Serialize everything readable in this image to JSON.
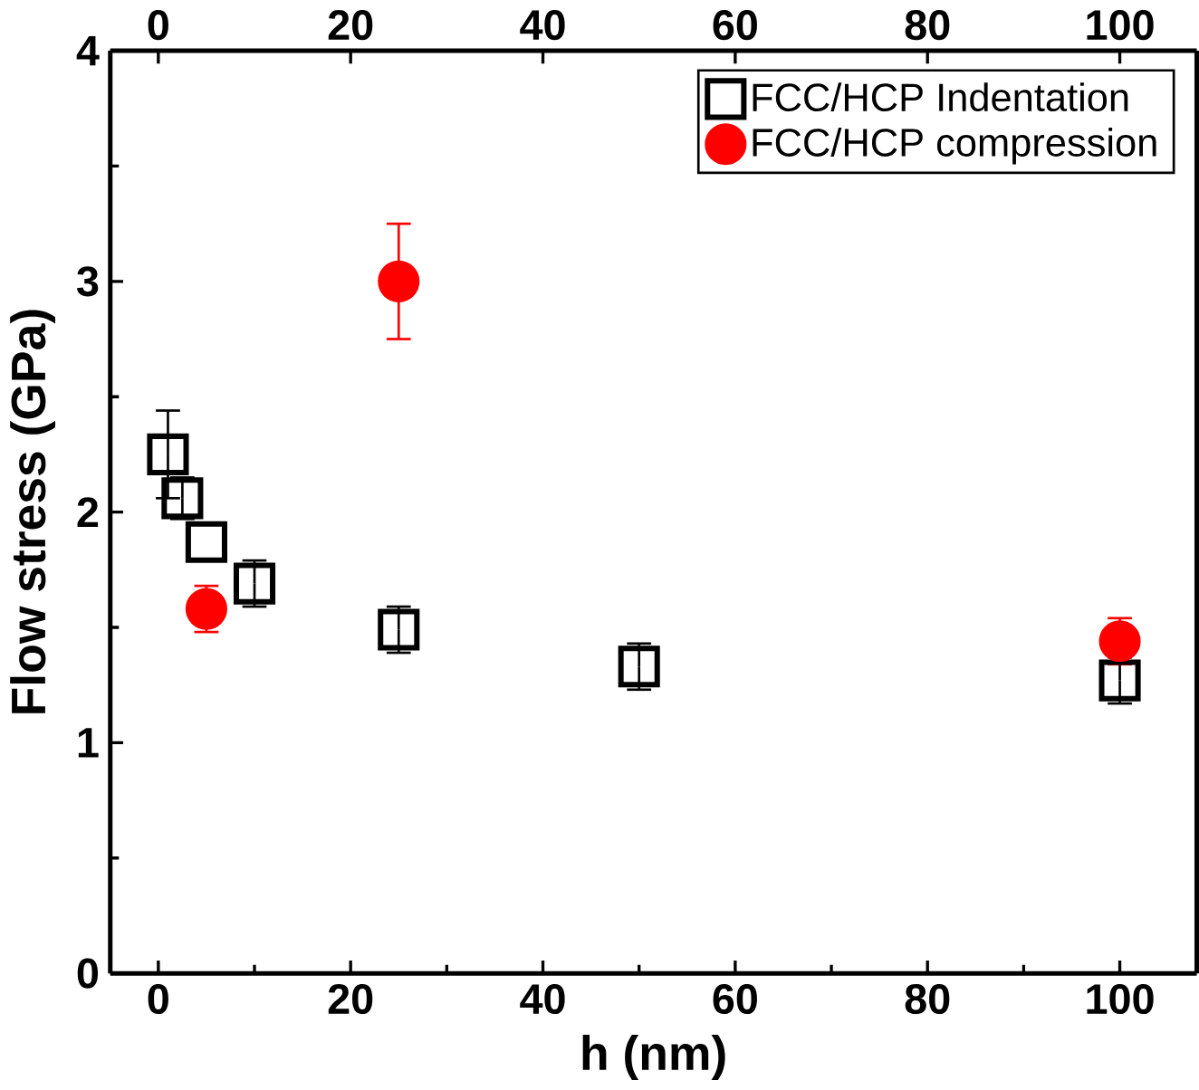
{
  "chart_data": {
    "type": "scatter",
    "xlabel": "h (nm)",
    "ylabel": "Flow stress (GPa)",
    "xlim": [
      -5,
      108
    ],
    "xticks": [
      0,
      20,
      40,
      60,
      80,
      100
    ],
    "x2lim": [
      -5,
      108
    ],
    "x2ticks": [
      0,
      20,
      40,
      60,
      80,
      100
    ],
    "ylim": [
      0,
      4
    ],
    "yticks": [
      0,
      1,
      2,
      3,
      4
    ],
    "legend": "top right",
    "grid": false,
    "series": [
      {
        "name": "FCC/HCP Indentation",
        "color": "#000000",
        "marker": "square",
        "x": [
          1,
          2.5,
          5,
          10,
          25,
          50,
          100
        ],
        "values": [
          2.25,
          2.06,
          1.87,
          1.69,
          1.49,
          1.33,
          1.27
        ],
        "errors": [
          0.19,
          0.09,
          null,
          0.1,
          0.1,
          0.1,
          0.1
        ]
      },
      {
        "name": "FCC/HCP compression",
        "color": "#ff0000",
        "marker": "circle",
        "x": [
          5,
          25,
          100
        ],
        "values": [
          1.58,
          3.0,
          1.44
        ],
        "errors": [
          0.1,
          0.25,
          0.1
        ]
      }
    ]
  }
}
